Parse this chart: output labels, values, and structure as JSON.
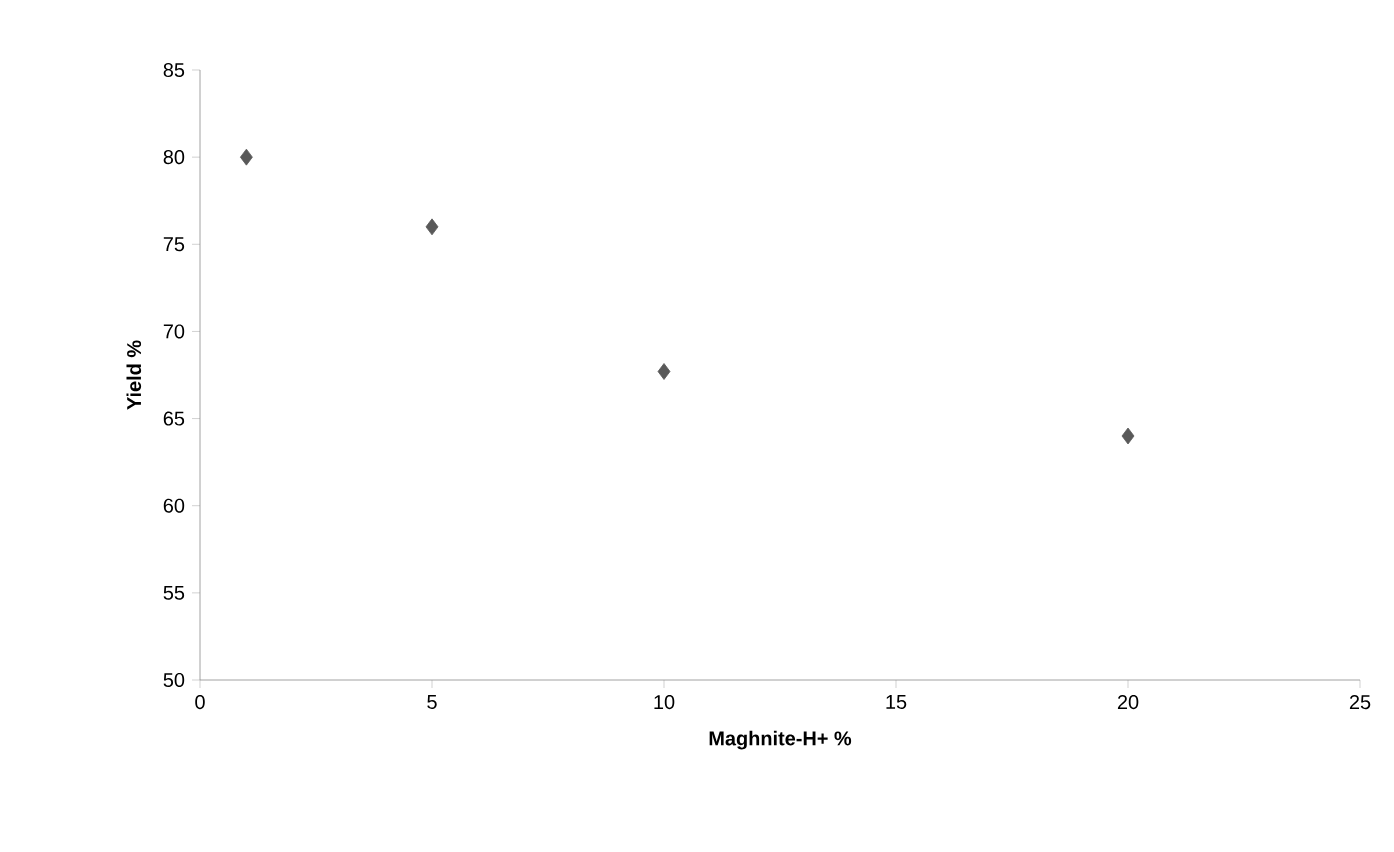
{
  "chart_data": {
    "type": "scatter",
    "xlabel": "Maghnite-H+  %",
    "ylabel": "Yield %",
    "x": [
      1,
      5,
      10,
      20
    ],
    "series": [
      {
        "color": "#595959",
        "values": [
          80,
          76,
          67.7,
          64
        ]
      }
    ],
    "marker": "diamond",
    "xlim": [
      0,
      25
    ],
    "xticks": [
      0,
      5,
      10,
      15,
      20,
      25
    ],
    "ylim": [
      50,
      85
    ],
    "yticks": [
      50,
      55,
      60,
      65,
      70,
      75,
      80,
      85
    ],
    "grid": false
  }
}
